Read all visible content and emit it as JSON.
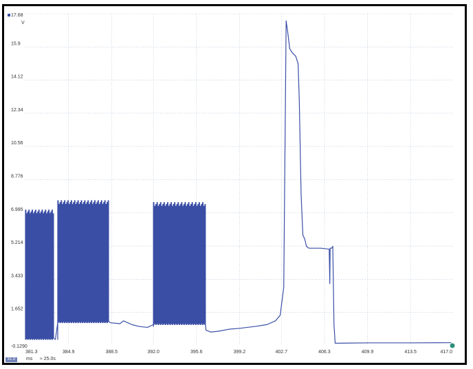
{
  "chart_data": {
    "type": "line",
    "title": "",
    "xlabel": "",
    "ylabel": "",
    "y_unit": "V",
    "x_unit": "ms",
    "timebase": "≈ 25.0s",
    "badge": "x1.0",
    "y_top_label": "17.68",
    "y_ticks": [
      "15.9",
      "14.12",
      "12.34",
      "10.56",
      "8.776",
      "6.995",
      "5.214",
      "3.433",
      "1.652",
      "-0.1290"
    ],
    "y_tick_values": [
      15.9,
      14.12,
      12.34,
      10.56,
      8.776,
      6.995,
      5.214,
      3.433,
      1.652,
      -0.129
    ],
    "x_ticks": [
      "381.3",
      "384.9",
      "388.5",
      "392.0",
      "395.6",
      "399.2",
      "402.7",
      "406.3",
      "409.9",
      "413.5",
      "417.0"
    ],
    "x_tick_values": [
      381.3,
      384.9,
      388.5,
      392.0,
      395.6,
      399.2,
      402.7,
      406.3,
      409.9,
      413.5,
      417.0
    ],
    "xlim": [
      381.3,
      417.0
    ],
    "ylim": [
      -0.129,
      17.68
    ],
    "grid": true,
    "series": [
      {
        "color": "#3a4ea6",
        "bursts": [
          {
            "start": 381.3,
            "end": 383.7,
            "high": 7.0,
            "low": 0.2,
            "count": 26
          },
          {
            "start": 384.0,
            "end": 388.3,
            "high": 7.5,
            "low": 1.1,
            "count": 46
          },
          {
            "start": 392.0,
            "end": 396.4,
            "high": 7.4,
            "low": 1.0,
            "count": 45
          }
        ],
        "points": [
          [
            381.3,
            0.3
          ],
          [
            383.8,
            0.2
          ],
          [
            384.0,
            0.2
          ],
          [
            388.4,
            1.1
          ],
          [
            389.2,
            1.05
          ],
          [
            389.5,
            1.2
          ],
          [
            390.2,
            1.0
          ],
          [
            390.8,
            0.9
          ],
          [
            391.5,
            0.85
          ],
          [
            392.0,
            0.9
          ],
          [
            396.4,
            0.7
          ],
          [
            396.8,
            0.6
          ],
          [
            397.5,
            0.65
          ],
          [
            398.3,
            0.75
          ],
          [
            399.2,
            0.8
          ],
          [
            400.5,
            0.9
          ],
          [
            401.5,
            1.0
          ],
          [
            402.2,
            1.2
          ],
          [
            402.6,
            1.5
          ],
          [
            402.9,
            3.0
          ],
          [
            403.1,
            17.3
          ],
          [
            403.25,
            16.6
          ],
          [
            403.4,
            15.8
          ],
          [
            403.6,
            15.6
          ],
          [
            403.9,
            15.4
          ],
          [
            404.1,
            15.0
          ],
          [
            404.2,
            13.0
          ],
          [
            404.35,
            8.0
          ],
          [
            404.5,
            5.8
          ],
          [
            404.65,
            5.6
          ],
          [
            404.8,
            5.2
          ],
          [
            405.0,
            5.1
          ],
          [
            406.0,
            5.1
          ],
          [
            406.7,
            5.05
          ],
          [
            406.75,
            3.2
          ],
          [
            406.78,
            5.1
          ],
          [
            406.9,
            5.1
          ],
          [
            407.0,
            5.2
          ],
          [
            407.1,
            1.0
          ],
          [
            407.2,
            0.0
          ],
          [
            410.0,
            0.02
          ],
          [
            413.5,
            0.02
          ],
          [
            416.9,
            0.03
          ]
        ]
      }
    ]
  }
}
